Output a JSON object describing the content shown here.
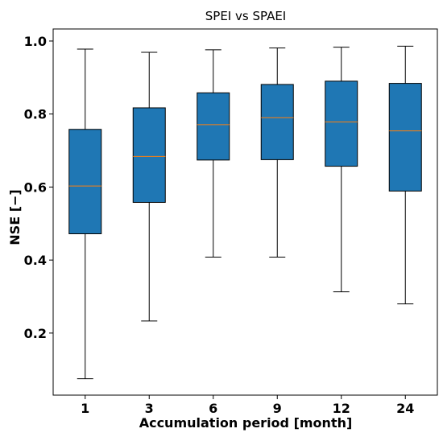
{
  "chart_data": {
    "type": "box",
    "title": "SPEI vs SPAEI",
    "xlabel": "Accumulation period [month]",
    "ylabel": "NSE [−]",
    "ylim": [
      0.03,
      1.033
    ],
    "yticks": [
      "0.2",
      "0.4",
      "0.6",
      "0.8",
      "1.0"
    ],
    "categories": [
      "1",
      "3",
      "6",
      "9",
      "12",
      "24"
    ],
    "boxes": [
      {
        "whisker_low": 0.075,
        "q1": 0.472,
        "median": 0.603,
        "q3": 0.758,
        "whisker_high": 0.978
      },
      {
        "whisker_low": 0.233,
        "q1": 0.558,
        "median": 0.684,
        "q3": 0.817,
        "whisker_high": 0.969
      },
      {
        "whisker_low": 0.408,
        "q1": 0.674,
        "median": 0.771,
        "q3": 0.858,
        "whisker_high": 0.976
      },
      {
        "whisker_low": 0.408,
        "q1": 0.675,
        "median": 0.79,
        "q3": 0.881,
        "whisker_high": 0.981
      },
      {
        "whisker_low": 0.313,
        "q1": 0.657,
        "median": 0.778,
        "q3": 0.89,
        "whisker_high": 0.983
      },
      {
        "whisker_low": 0.28,
        "q1": 0.589,
        "median": 0.754,
        "q3": 0.884,
        "whisker_high": 0.986
      }
    ],
    "grid": false,
    "colors": {
      "box_fill": "#1f77b4",
      "median": "#ff7f0e",
      "lines": "#000000"
    }
  }
}
